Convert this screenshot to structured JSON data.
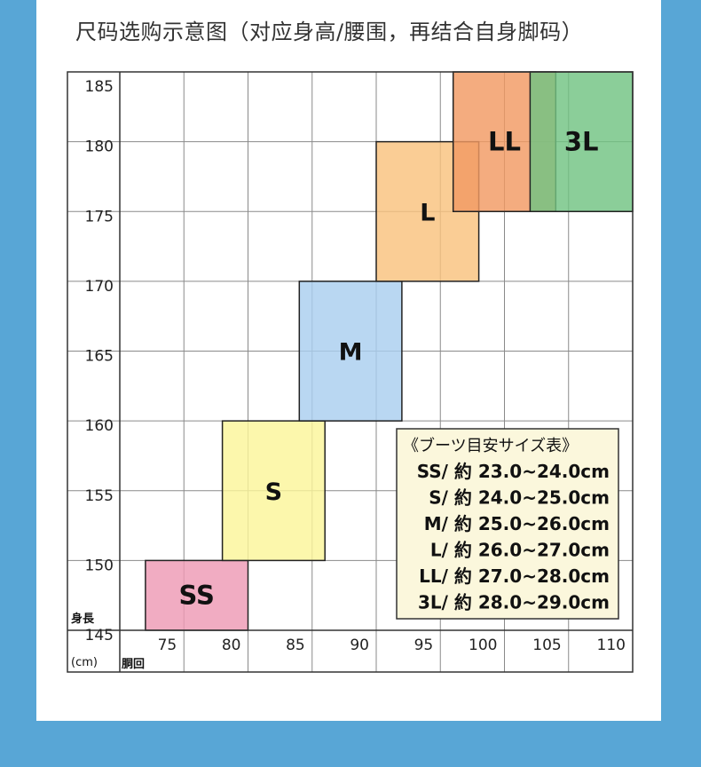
{
  "page": {
    "title": "尺码选购示意图（对应身高/腰围，再结合自身脚码）"
  },
  "chart_data": {
    "type": "heatmap",
    "title": "尺码选购示意图（对应身高/腰围，再结合自身脚码）",
    "xlabel": "胴回",
    "ylabel": "身長",
    "unit_label": "(cm)",
    "xlim": [
      70,
      110
    ],
    "ylim": [
      145,
      185
    ],
    "x_ticks": [
      75,
      80,
      85,
      90,
      95,
      100,
      105,
      110
    ],
    "y_ticks": [
      145,
      150,
      155,
      160,
      165,
      170,
      175,
      180,
      185
    ],
    "grid": true,
    "regions": [
      {
        "label": "SS",
        "x": [
          72,
          80
        ],
        "y": [
          145,
          150
        ],
        "color": "#ee9ab5"
      },
      {
        "label": "S",
        "x": [
          78,
          86
        ],
        "y": [
          150,
          160
        ],
        "color": "#fbf59a"
      },
      {
        "label": "M",
        "x": [
          84,
          92
        ],
        "y": [
          160,
          170
        ],
        "color": "#a9ceef"
      },
      {
        "label": "L",
        "x": [
          90,
          98
        ],
        "y": [
          170,
          180
        ],
        "color": "#f9c27e"
      },
      {
        "label": "LL",
        "x": [
          96,
          104
        ],
        "y": [
          175,
          185
        ],
        "color": "#f29a63"
      },
      {
        "label": "3L",
        "x": [
          102,
          110
        ],
        "y": [
          175,
          185
        ],
        "color": "#72c382"
      }
    ],
    "legend": {
      "position": "bottom-right",
      "heading": "《ブーツ目安サイズ表》",
      "entries": [
        "SS/ 約 23.0~24.0cm",
        "S/ 約 24.0~25.0cm",
        "M/ 約 25.0~26.0cm",
        "L/ 約 26.0~27.0cm",
        "LL/ 約 27.0~28.0cm",
        "3L/ 約 28.0~29.0cm"
      ]
    }
  }
}
